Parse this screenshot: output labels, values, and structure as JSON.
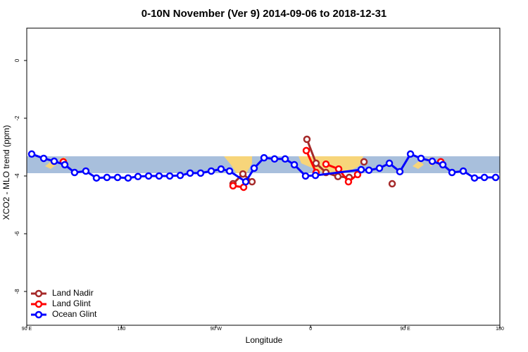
{
  "chart_data": {
    "type": "line",
    "title": "0-10N November (Ver 9)   2014-09-06 to 2018-12-31",
    "xlabel": "Longitude",
    "ylabel": "XCO2 - MLO trend (ppm)",
    "xlim": [
      90,
      540
    ],
    "xticks": [
      {
        "value": 90,
        "label": "90 E"
      },
      {
        "value": 180,
        "label": "180"
      },
      {
        "value": 270,
        "label": "90 W"
      },
      {
        "value": 360,
        "label": "0"
      },
      {
        "value": 450,
        "label": "90 E"
      },
      {
        "value": 540,
        "label": "180"
      }
    ],
    "ylim": [
      -9.17,
      1.12
    ],
    "yticks": [
      0,
      -2,
      -4,
      -6,
      -8
    ],
    "legend": "bottom-left",
    "series": [
      {
        "name": "Land Nadir",
        "color": "#a52a2a",
        "x": [
          124.8,
          null,
          286.2,
          295.6,
          304.3,
          null,
          356.5,
          365.2,
          374.6,
          386.0,
          396.7,
          null,
          410.8,
          null,
          437.6,
          null,
          483.8
        ],
        "values": [
          -3.51,
          null,
          -4.27,
          -3.93,
          -4.2,
          null,
          -2.73,
          -3.56,
          -3.88,
          -4.02,
          -4.05,
          null,
          -3.51,
          null,
          -4.27,
          null,
          -3.51
        ]
      },
      {
        "name": "Land Glint",
        "color": "#ff0000",
        "x": [
          124.8,
          null,
          286.2,
          296.3,
          null,
          355.9,
          365.2,
          null,
          374.6,
          386.7,
          396.0,
          404.7,
          null,
          483.8
        ],
        "values": [
          -3.51,
          null,
          -4.34,
          -4.39,
          null,
          -3.12,
          -3.88,
          null,
          -3.59,
          -3.76,
          -4.2,
          -3.95,
          null,
          -3.51
        ]
      },
      {
        "name": "Ocean Glint",
        "color": "#0000ff",
        "x": [
          94.7,
          106.1,
          116.1,
          126.2,
          135.5,
          146.2,
          156.3,
          166.3,
          176.4,
          186.4,
          195.8,
          205.9,
          215.9,
          226.0,
          236.0,
          245.4,
          255.4,
          265.5,
          274.8,
          282.9,
          298.3,
          306.3,
          315.7,
          325.7,
          335.8,
          344.5,
          355.2,
          364.6,
          408.1,
          415.5,
          425.5,
          434.9,
          444.9,
          455.0,
          465.0,
          475.7,
          485.8,
          494.5,
          505.2,
          515.9,
          525.3,
          536.0
        ],
        "values": [
          -3.24,
          -3.39,
          -3.49,
          -3.61,
          -3.88,
          -3.83,
          -4.07,
          -4.05,
          -4.05,
          -4.07,
          -4.02,
          -4.0,
          -4.0,
          -4.0,
          -3.98,
          -3.9,
          -3.9,
          -3.83,
          -3.76,
          -3.83,
          -4.2,
          -3.73,
          -3.37,
          -3.41,
          -3.41,
          -3.61,
          -4.0,
          -3.98,
          -3.78,
          -3.8,
          -3.73,
          -3.56,
          -3.85,
          -3.24,
          -3.39,
          -3.49,
          -3.61,
          -3.88,
          -3.83,
          -4.07,
          -4.05,
          -4.05
        ]
      }
    ]
  }
}
